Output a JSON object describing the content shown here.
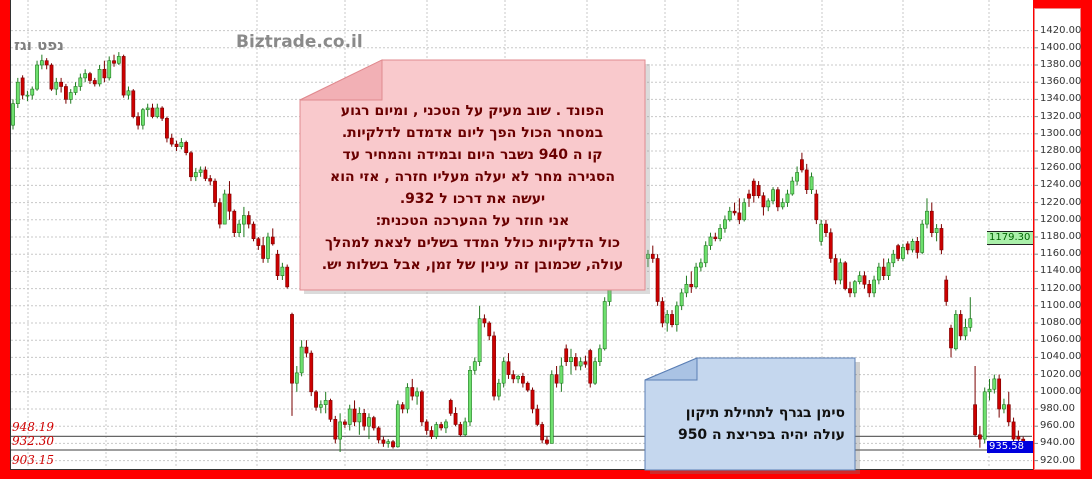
{
  "chart_data": {
    "type": "candlestick",
    "title": "נפט וגז",
    "watermark": "Biztrade.co.il",
    "ylim": [
      905,
      1430
    ],
    "grid": true,
    "y_ticks": [
      "1420.00",
      "1400.00",
      "1380.00",
      "1360.00",
      "1340.00",
      "1320.00",
      "1300.00",
      "1280.00",
      "1260.00",
      "1240.00",
      "1220.00",
      "1200.00",
      "1180.00",
      "1160.00",
      "1140.00",
      "1120.00",
      "1100.00",
      "1080.00",
      "1060.00",
      "1040.00",
      "1020.00",
      "1000.00",
      "980.00",
      "960.00",
      "940.00",
      "920.00"
    ],
    "marker_price": "1179.30",
    "last_price": "935.58",
    "levels": [
      {
        "value": 948.19,
        "label": "948.19"
      },
      {
        "value": 932.3,
        "label": "932.30"
      },
      {
        "value": 903.15,
        "label": "903.15"
      }
    ],
    "colors": {
      "up": "#6ee06e",
      "up_border": "#1f7a1f",
      "down": "#cc0000",
      "down_border": "#7a0000"
    },
    "candles_ohlc": [
      [
        1310,
        1340,
        1305,
        1335
      ],
      [
        1335,
        1365,
        1330,
        1360
      ],
      [
        1365,
        1368,
        1340,
        1345
      ],
      [
        1345,
        1350,
        1338,
        1345
      ],
      [
        1345,
        1355,
        1340,
        1352
      ],
      [
        1352,
        1385,
        1350,
        1380
      ],
      [
        1380,
        1392,
        1375,
        1385
      ],
      [
        1385,
        1388,
        1375,
        1380
      ],
      [
        1380,
        1382,
        1350,
        1352
      ],
      [
        1352,
        1365,
        1345,
        1360
      ],
      [
        1360,
        1365,
        1348,
        1355
      ],
      [
        1355,
        1358,
        1335,
        1340
      ],
      [
        1340,
        1352,
        1335,
        1348
      ],
      [
        1348,
        1360,
        1345,
        1355
      ],
      [
        1355,
        1370,
        1350,
        1365
      ],
      [
        1365,
        1375,
        1360,
        1370
      ],
      [
        1370,
        1372,
        1358,
        1362
      ],
      [
        1362,
        1365,
        1355,
        1358
      ],
      [
        1358,
        1380,
        1355,
        1375
      ],
      [
        1375,
        1385,
        1360,
        1365
      ],
      [
        1365,
        1390,
        1362,
        1385
      ],
      [
        1385,
        1392,
        1378,
        1382
      ],
      [
        1382,
        1395,
        1380,
        1390
      ],
      [
        1390,
        1392,
        1342,
        1345
      ],
      [
        1345,
        1355,
        1340,
        1350
      ],
      [
        1350,
        1352,
        1318,
        1320
      ],
      [
        1320,
        1325,
        1305,
        1310
      ],
      [
        1310,
        1330,
        1305,
        1328
      ],
      [
        1328,
        1335,
        1320,
        1330
      ],
      [
        1330,
        1335,
        1318,
        1320
      ],
      [
        1320,
        1335,
        1318,
        1330
      ],
      [
        1330,
        1332,
        1315,
        1318
      ],
      [
        1318,
        1320,
        1290,
        1295
      ],
      [
        1295,
        1300,
        1285,
        1288
      ],
      [
        1288,
        1292,
        1280,
        1285
      ],
      [
        1285,
        1295,
        1282,
        1290
      ],
      [
        1290,
        1292,
        1275,
        1278
      ],
      [
        1278,
        1280,
        1245,
        1250
      ],
      [
        1250,
        1260,
        1245,
        1255
      ],
      [
        1255,
        1262,
        1250,
        1258
      ],
      [
        1258,
        1262,
        1245,
        1248
      ],
      [
        1248,
        1252,
        1240,
        1245
      ],
      [
        1245,
        1248,
        1215,
        1220
      ],
      [
        1220,
        1225,
        1190,
        1195
      ],
      [
        1195,
        1235,
        1195,
        1230
      ],
      [
        1230,
        1245,
        1200,
        1210
      ],
      [
        1210,
        1212,
        1180,
        1185
      ],
      [
        1185,
        1200,
        1180,
        1195
      ],
      [
        1195,
        1215,
        1180,
        1205
      ],
      [
        1205,
        1210,
        1190,
        1195
      ],
      [
        1195,
        1198,
        1175,
        1178
      ],
      [
        1178,
        1180,
        1165,
        1170
      ],
      [
        1170,
        1180,
        1150,
        1155
      ],
      [
        1155,
        1185,
        1150,
        1180
      ],
      [
        1180,
        1190,
        1170,
        1172
      ],
      [
        1160,
        1165,
        1130,
        1135
      ],
      [
        1135,
        1150,
        1130,
        1145
      ],
      [
        1145,
        1148,
        1120,
        1122
      ],
      [
        1090,
        1092,
        972,
        1010
      ],
      [
        1010,
        1030,
        1000,
        1022
      ],
      [
        1022,
        1060,
        1018,
        1052
      ],
      [
        1052,
        1060,
        1040,
        1045
      ],
      [
        1045,
        1048,
        995,
        1000
      ],
      [
        1000,
        1002,
        978,
        982
      ],
      [
        982,
        990,
        975,
        985
      ],
      [
        985,
        1000,
        975,
        990
      ],
      [
        990,
        992,
        965,
        968
      ],
      [
        968,
        972,
        940,
        945
      ],
      [
        945,
        975,
        930,
        965
      ],
      [
        965,
        968,
        958,
        962
      ],
      [
        962,
        985,
        955,
        980
      ],
      [
        980,
        990,
        960,
        965
      ],
      [
        965,
        982,
        950,
        975
      ],
      [
        975,
        980,
        955,
        960
      ],
      [
        960,
        975,
        945,
        970
      ],
      [
        970,
        972,
        955,
        958
      ],
      [
        958,
        960,
        940,
        944
      ],
      [
        944,
        948,
        936,
        940
      ],
      [
        940,
        945,
        935,
        942
      ],
      [
        942,
        944,
        934,
        936
      ],
      [
        936,
        990,
        935,
        985
      ],
      [
        985,
        988,
        975,
        980
      ],
      [
        980,
        1010,
        975,
        1005
      ],
      [
        1005,
        1015,
        990,
        995
      ],
      [
        995,
        1005,
        985,
        1000
      ],
      [
        1000,
        1002,
        960,
        965
      ],
      [
        965,
        968,
        950,
        955
      ],
      [
        955,
        960,
        945,
        948
      ],
      [
        948,
        965,
        945,
        962
      ],
      [
        962,
        965,
        955,
        958
      ],
      [
        958,
        968,
        952,
        965
      ],
      [
        990,
        992,
        972,
        975
      ],
      [
        975,
        982,
        960,
        962
      ],
      [
        962,
        965,
        948,
        950
      ],
      [
        950,
        970,
        948,
        965
      ],
      [
        965,
        1030,
        960,
        1025
      ],
      [
        1025,
        1040,
        1020,
        1035
      ],
      [
        1035,
        1100,
        1030,
        1085
      ],
      [
        1085,
        1090,
        1075,
        1080
      ],
      [
        1080,
        1082,
        1060,
        1065
      ],
      [
        1065,
        1070,
        990,
        995
      ],
      [
        995,
        1015,
        990,
        1010
      ],
      [
        1010,
        1040,
        1005,
        1035
      ],
      [
        1035,
        1045,
        1015,
        1020
      ],
      [
        1020,
        1025,
        1010,
        1015
      ],
      [
        1015,
        1020,
        1010,
        1018
      ],
      [
        1018,
        1022,
        1005,
        1010
      ],
      [
        1010,
        1012,
        1000,
        1002
      ],
      [
        1002,
        1005,
        975,
        980
      ],
      [
        980,
        985,
        960,
        962
      ],
      [
        962,
        965,
        940,
        944
      ],
      [
        944,
        948,
        938,
        940
      ],
      [
        940,
        1025,
        940,
        1020
      ],
      [
        1020,
        1030,
        1005,
        1010
      ],
      [
        1010,
        1040,
        1000,
        1030
      ],
      [
        1050,
        1055,
        1030,
        1035
      ],
      [
        1035,
        1050,
        1020,
        1040
      ],
      [
        1040,
        1045,
        1025,
        1030
      ],
      [
        1030,
        1040,
        1025,
        1035
      ],
      [
        1035,
        1042,
        1028,
        1032
      ],
      [
        1048,
        1050,
        1005,
        1010
      ],
      [
        1010,
        1040,
        1008,
        1035
      ],
      [
        1035,
        1055,
        1030,
        1050
      ],
      [
        1050,
        1110,
        1048,
        1105
      ],
      [
        1105,
        1150,
        1100,
        1145
      ],
      [
        1145,
        1170,
        1140,
        1160
      ],
      [
        1160,
        1165,
        1140,
        1145
      ],
      [
        1145,
        1150,
        1140,
        1142
      ],
      [
        1142,
        1148,
        1130,
        1135
      ],
      [
        1135,
        1160,
        1130,
        1155
      ],
      [
        1155,
        1180,
        1150,
        1175
      ],
      [
        1175,
        1185,
        1150,
        1155
      ],
      [
        1155,
        1165,
        1145,
        1160
      ],
      [
        1160,
        1170,
        1150,
        1155
      ],
      [
        1155,
        1160,
        1100,
        1105
      ],
      [
        1105,
        1110,
        1075,
        1080
      ],
      [
        1080,
        1095,
        1070,
        1090
      ],
      [
        1090,
        1095,
        1075,
        1078
      ],
      [
        1078,
        1105,
        1070,
        1100
      ],
      [
        1100,
        1120,
        1095,
        1115
      ],
      [
        1115,
        1135,
        1110,
        1125
      ],
      [
        1125,
        1140,
        1115,
        1122
      ],
      [
        1122,
        1150,
        1120,
        1145
      ],
      [
        1145,
        1155,
        1140,
        1150
      ],
      [
        1150,
        1175,
        1145,
        1170
      ],
      [
        1170,
        1185,
        1165,
        1180
      ],
      [
        1180,
        1185,
        1175,
        1178
      ],
      [
        1178,
        1195,
        1175,
        1190
      ],
      [
        1190,
        1205,
        1185,
        1200
      ],
      [
        1200,
        1215,
        1198,
        1210
      ],
      [
        1210,
        1220,
        1205,
        1208
      ],
      [
        1208,
        1225,
        1195,
        1200
      ],
      [
        1200,
        1225,
        1198,
        1220
      ],
      [
        1230,
        1235,
        1215,
        1225
      ],
      [
        1245,
        1248,
        1220,
        1228
      ],
      [
        1240,
        1245,
        1225,
        1228
      ],
      [
        1228,
        1232,
        1205,
        1215
      ],
      [
        1215,
        1225,
        1210,
        1222
      ],
      [
        1222,
        1238,
        1218,
        1235
      ],
      [
        1235,
        1238,
        1210,
        1215
      ],
      [
        1215,
        1225,
        1212,
        1220
      ],
      [
        1220,
        1235,
        1215,
        1230
      ],
      [
        1230,
        1250,
        1228,
        1245
      ],
      [
        1245,
        1262,
        1240,
        1255
      ],
      [
        1270,
        1278,
        1255,
        1258
      ],
      [
        1258,
        1265,
        1230,
        1235
      ],
      [
        1235,
        1255,
        1230,
        1250
      ],
      [
        1230,
        1235,
        1195,
        1200
      ],
      [
        1175,
        1200,
        1170,
        1195
      ],
      [
        1195,
        1200,
        1180,
        1185
      ],
      [
        1185,
        1190,
        1150,
        1155
      ],
      [
        1155,
        1160,
        1125,
        1130
      ],
      [
        1130,
        1155,
        1125,
        1150
      ],
      [
        1150,
        1152,
        1118,
        1120
      ],
      [
        1120,
        1128,
        1110,
        1115
      ],
      [
        1115,
        1130,
        1110,
        1128
      ],
      [
        1128,
        1140,
        1125,
        1135
      ],
      [
        1135,
        1140,
        1120,
        1125
      ],
      [
        1125,
        1130,
        1110,
        1115
      ],
      [
        1115,
        1135,
        1110,
        1130
      ],
      [
        1130,
        1150,
        1125,
        1145
      ],
      [
        1145,
        1155,
        1130,
        1135
      ],
      [
        1135,
        1155,
        1130,
        1150
      ],
      [
        1150,
        1165,
        1145,
        1160
      ],
      [
        1170,
        1172,
        1152,
        1155
      ],
      [
        1155,
        1172,
        1152,
        1168
      ],
      [
        1172,
        1175,
        1160,
        1165
      ],
      [
        1165,
        1178,
        1162,
        1175
      ],
      [
        1175,
        1180,
        1155,
        1162
      ],
      [
        1162,
        1200,
        1160,
        1195
      ],
      [
        1195,
        1225,
        1190,
        1210
      ],
      [
        1210,
        1220,
        1180,
        1185
      ],
      [
        1185,
        1195,
        1175,
        1190
      ],
      [
        1190,
        1195,
        1160,
        1165
      ],
      [
        1130,
        1135,
        1100,
        1105
      ],
      [
        1074,
        1078,
        1040,
        1051
      ],
      [
        1050,
        1095,
        1048,
        1090
      ],
      [
        1090,
        1095,
        1060,
        1065
      ],
      [
        1065,
        1085,
        1060,
        1075
      ],
      [
        1075,
        1110,
        1070,
        1085
      ],
      [
        985,
        1030,
        948,
        950
      ],
      [
        950,
        960,
        935,
        945
      ],
      [
        945,
        1005,
        940,
        1000
      ],
      [
        1000,
        1015,
        990,
        1003
      ],
      [
        1003,
        1020,
        998,
        1015
      ],
      [
        1015,
        1020,
        970,
        980
      ],
      [
        980,
        992,
        975,
        985
      ],
      [
        985,
        1000,
        960,
        965
      ],
      [
        965,
        970,
        940,
        945
      ],
      [
        948,
        955,
        935,
        945
      ],
      [
        945,
        948,
        936,
        940
      ],
      [
        940,
        942,
        932,
        935.58
      ]
    ]
  },
  "annotations": {
    "pink_note": {
      "lines": [
        "הפונד . שוב מעיק על הטכני , ומיום רגוע",
        "במסחר  הכול הפך ליום אדמדם לדלקיות.",
        "קו ה 940 נשבר היום ובמידה והמחיר עד",
        "הסגירה מחר לא יעלה מעליו  חזרה , אזי הוא",
        "יעשה  את דרכו ל 932.",
        "אני חוזר על ההערכה הטכנית:",
        "כול הדלקיות כולל המדד  בשלים לצאת למהלך",
        "עולה, שכמובן זה עינין של  זמן, אבל בשלות יש."
      ]
    },
    "blue_note": {
      "lines": [
        "סימן בגרף לתחילת תיקון",
        "עולה יהיה בפריצת ה 950"
      ]
    }
  }
}
